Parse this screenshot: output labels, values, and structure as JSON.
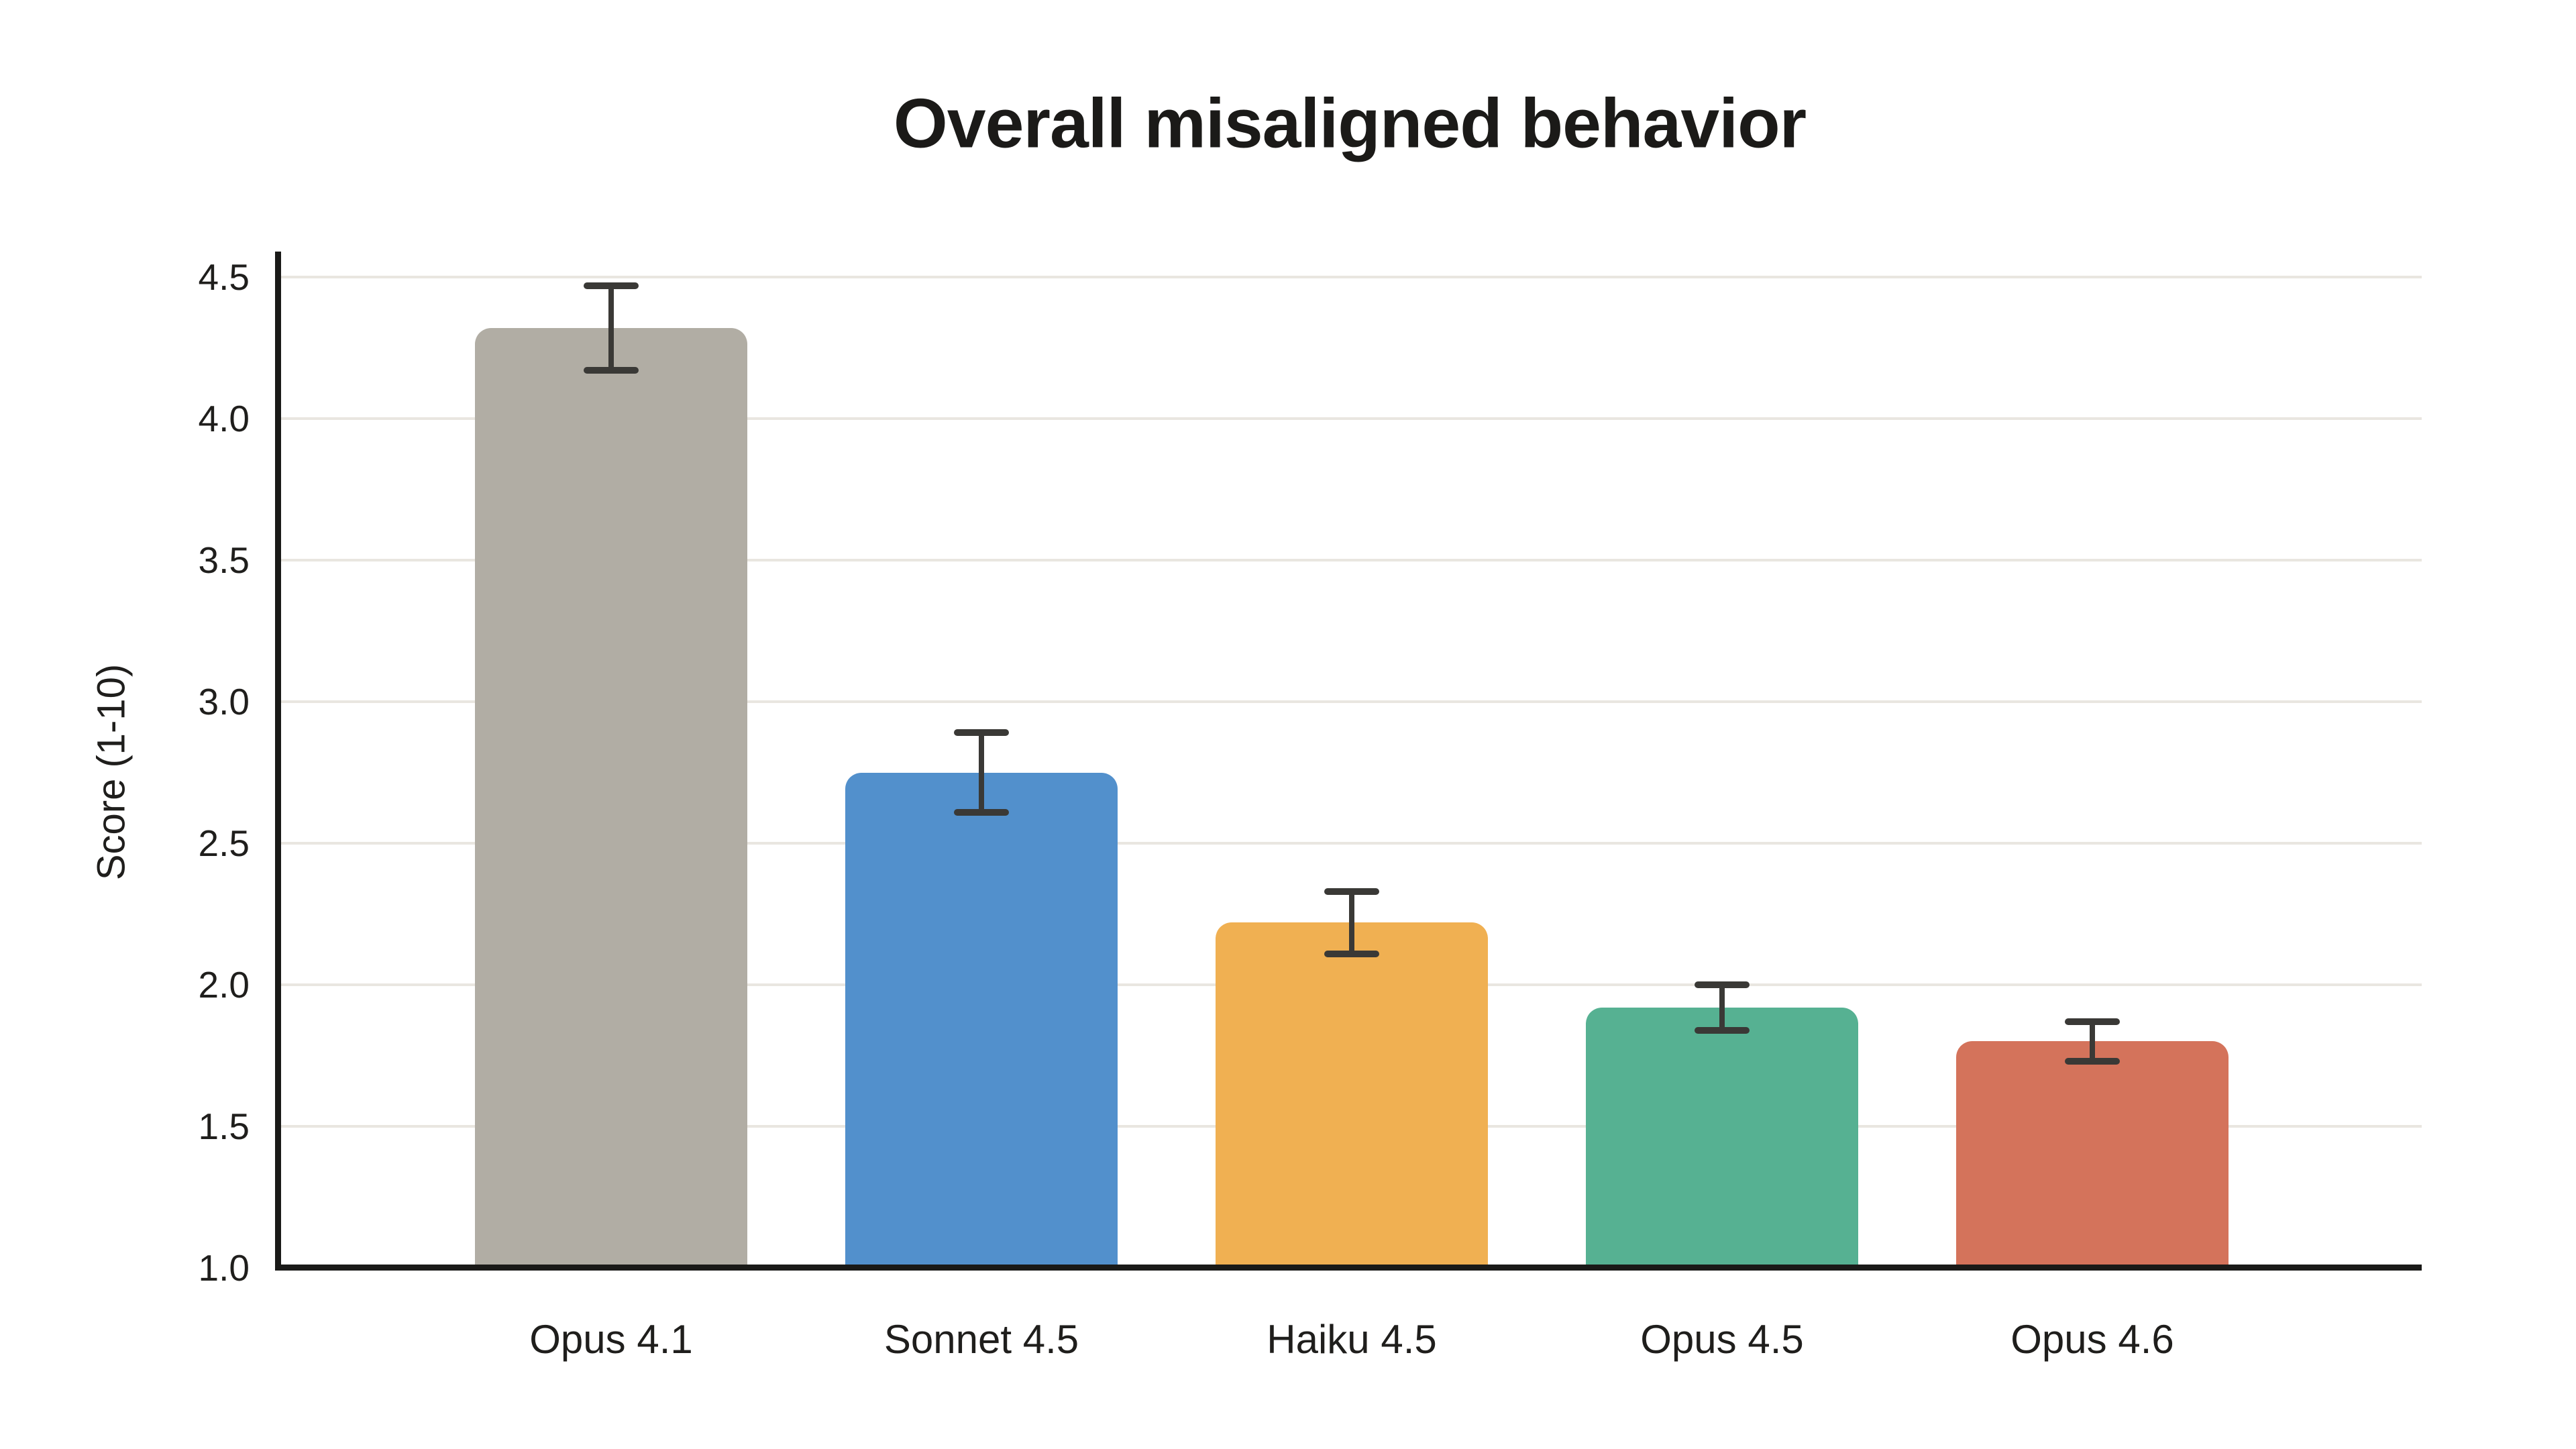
{
  "figure": {
    "background": "#ffffff"
  },
  "chart_data": {
    "type": "bar",
    "title": "Overall misaligned behavior",
    "xlabel": "",
    "ylabel": "Score (1-10)",
    "categories": [
      "Opus 4.1",
      "Sonnet 4.5",
      "Haiku 4.5",
      "Opus 4.5",
      "Opus 4.6"
    ],
    "values": [
      4.32,
      2.75,
      2.22,
      1.92,
      1.8
    ],
    "errors": [
      0.15,
      0.14,
      0.11,
      0.08,
      0.07
    ],
    "bar_colors": [
      "#b1ada4",
      "#5290cc",
      "#f0b052",
      "#56b192",
      "#d4735b"
    ],
    "ylim": [
      1.0,
      4.5
    ],
    "yticks": [
      1.0,
      1.5,
      2.0,
      2.5,
      3.0,
      3.5,
      4.0,
      4.5
    ],
    "grid": true,
    "legend_position": "none",
    "grid_color": "#e9e6e0",
    "axis_color": "#1a1a18",
    "errorbar_color": "#3a3936",
    "text_color": "#1f1e1c"
  }
}
